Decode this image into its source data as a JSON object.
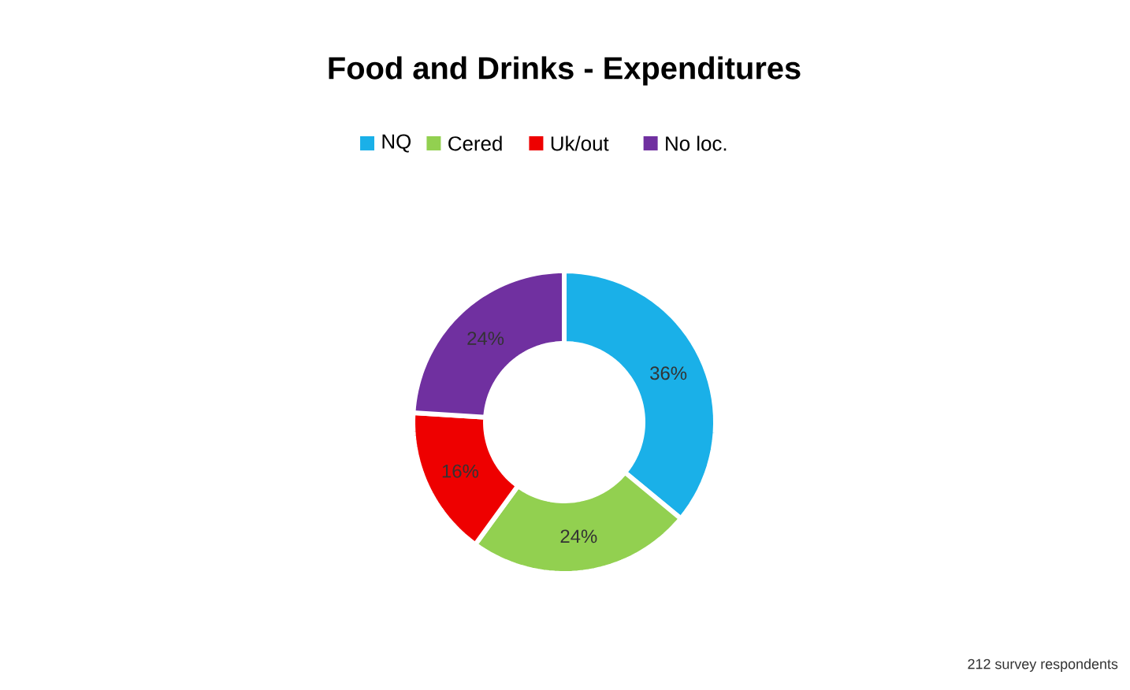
{
  "chart_data": {
    "type": "donut",
    "title": "Food and Drinks -  Expenditures",
    "categories": [
      "NQ",
      "Cered",
      "Uk/out",
      "No loc."
    ],
    "values": [
      36,
      24,
      16,
      24
    ],
    "value_labels": [
      "36%",
      "24%",
      "16%",
      "24%"
    ],
    "colors": [
      "#1ab0e8",
      "#92d050",
      "#ee0000",
      "#7030a0"
    ],
    "legend": "top",
    "annotations": [
      "212  survey respondents"
    ]
  }
}
